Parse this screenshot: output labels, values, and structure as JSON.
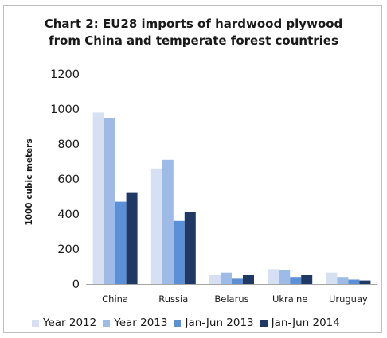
{
  "chart_data": {
    "type": "bar",
    "title": "Chart 2: EU28 imports of hardwood plywood from China and temperate forest countries",
    "title_lines": [
      "Chart 2: EU28 imports of hardwood plywood",
      "from China and temperate forest countries"
    ],
    "xlabel": "",
    "ylabel": "1000 cubic meters",
    "ylim": [
      0,
      1200
    ],
    "yticks": [
      "0",
      "200",
      "400",
      "600",
      "800",
      "1000",
      "1200"
    ],
    "ytick_values": [
      0,
      200,
      400,
      600,
      800,
      1000,
      1200
    ],
    "grid": false,
    "legend_position": "bottom",
    "categories": [
      "China",
      "Russia",
      "Belarus",
      "Ukraine",
      "Uruguay"
    ],
    "series": [
      {
        "name": "Year 2012",
        "color": "#d6e0f2",
        "values": [
          980,
          660,
          50,
          85,
          65
        ]
      },
      {
        "name": "Year 2013",
        "color": "#9dbbe6",
        "values": [
          950,
          710,
          65,
          80,
          40
        ]
      },
      {
        "name": "Jan-Jun 2013",
        "color": "#5b8fd6",
        "values": [
          470,
          360,
          30,
          40,
          25
        ]
      },
      {
        "name": "Jan-Jun 2014",
        "color": "#1f3864",
        "values": [
          520,
          410,
          50,
          50,
          20
        ]
      }
    ]
  }
}
